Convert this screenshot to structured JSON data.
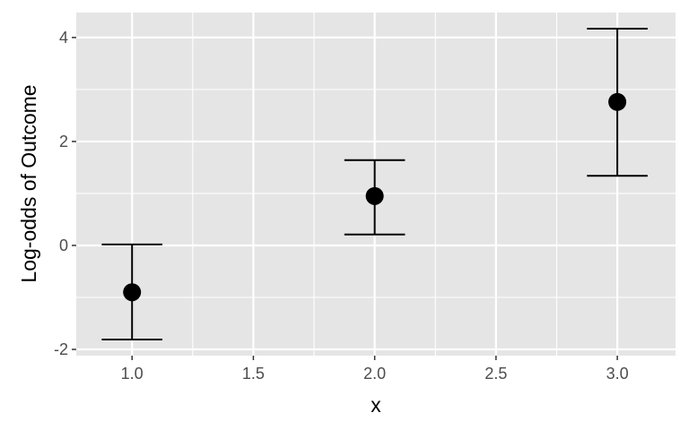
{
  "chart_data": {
    "type": "scatter",
    "title": "",
    "xlabel": "x",
    "ylabel": "Log-odds of Outcome",
    "xlim": [
      0.77,
      3.24
    ],
    "ylim": [
      -2.12,
      4.48
    ],
    "x_ticks": [
      1.0,
      1.5,
      2.0,
      2.5,
      3.0
    ],
    "x_tick_labels": [
      "1.0",
      "1.5",
      "2.0",
      "2.5",
      "3.0"
    ],
    "y_ticks": [
      -2,
      0,
      2,
      4
    ],
    "y_tick_labels": [
      "-2",
      "0",
      "2",
      "4"
    ],
    "grid": true,
    "points": [
      {
        "x": 1.0,
        "y": -0.9,
        "ymin": -1.81,
        "ymax": 0.02
      },
      {
        "x": 2.0,
        "y": 0.95,
        "ymin": 0.21,
        "ymax": 1.64
      },
      {
        "x": 3.0,
        "y": 2.76,
        "ymin": 1.34,
        "ymax": 4.17
      }
    ],
    "colors": {
      "panel": "#e5e5e5",
      "grid": "#ffffff",
      "mark": "#000000",
      "tick_text": "#4d4d4d"
    }
  }
}
